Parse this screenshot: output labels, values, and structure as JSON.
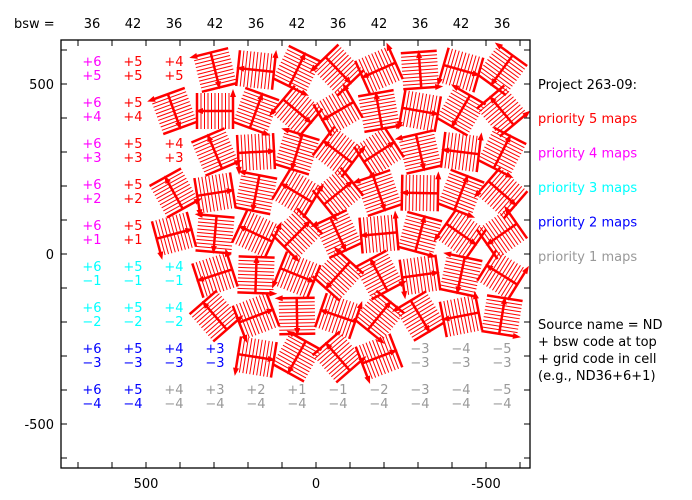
{
  "chart_data": {
    "type": "scatter",
    "title": "",
    "xlabel": "",
    "ylabel": "",
    "xlim": [
      750,
      -620
    ],
    "ylim": [
      -630,
      630
    ],
    "x_ticks": [
      "500",
      "0",
      "-500"
    ],
    "x_tick_values": [
      500,
      0,
      -500
    ],
    "y_ticks": [
      "500",
      "0",
      "-500"
    ],
    "y_tick_values": [
      500,
      0,
      -500
    ],
    "bsw_label": "bsw =",
    "bsw_codes": [
      "36",
      "42",
      "36",
      "42",
      "36",
      "42",
      "36",
      "42",
      "36",
      "42",
      "36"
    ],
    "column_codes": [
      "+6",
      "+5",
      "+4",
      "+3",
      "+2",
      "+1",
      "−1",
      "−2",
      "−3",
      "−4",
      "−5"
    ],
    "row_codes": [
      "+5",
      "+4",
      "+3",
      "+2",
      "+1",
      "−1",
      "−2",
      "−3",
      "−4"
    ],
    "colors": {
      "p5": "#ff0000",
      "p4": "#ff00ff",
      "p3": "#00ffff",
      "p2": "#0000ff",
      "p1": "#999999",
      "axis": "#000000"
    },
    "map_rows": [
      {
        "row": 0,
        "cols": [
          3,
          4,
          5,
          6,
          7,
          8,
          9,
          10
        ]
      },
      {
        "row": 1,
        "cols": [
          2,
          3,
          4,
          5,
          6,
          7,
          8,
          9,
          10
        ]
      },
      {
        "row": 2,
        "cols": [
          3,
          4,
          5,
          6,
          7,
          8,
          9,
          10
        ]
      },
      {
        "row": 3,
        "cols": [
          2,
          3,
          4,
          5,
          6,
          7,
          8,
          9,
          10
        ]
      },
      {
        "row": 4,
        "cols": [
          2,
          3,
          4,
          5,
          6,
          7,
          8,
          9,
          10
        ]
      },
      {
        "row": 5,
        "cols": [
          3,
          4,
          5,
          6,
          7,
          8,
          9,
          10
        ]
      },
      {
        "row": 6,
        "cols": [
          3,
          4,
          5,
          6,
          7,
          8,
          9,
          10
        ]
      },
      {
        "row": 7,
        "cols": [
          4,
          5,
          6,
          7
        ]
      }
    ],
    "label_cells": [
      {
        "row": 0,
        "col": 0,
        "p": "p4"
      },
      {
        "row": 0,
        "col": 1,
        "p": "p5"
      },
      {
        "row": 0,
        "col": 2,
        "p": "p5"
      },
      {
        "row": 1,
        "col": 0,
        "p": "p4"
      },
      {
        "row": 1,
        "col": 1,
        "p": "p5"
      },
      {
        "row": 2,
        "col": 0,
        "p": "p4"
      },
      {
        "row": 2,
        "col": 1,
        "p": "p5"
      },
      {
        "row": 2,
        "col": 2,
        "p": "p5"
      },
      {
        "row": 3,
        "col": 0,
        "p": "p4"
      },
      {
        "row": 3,
        "col": 1,
        "p": "p5"
      },
      {
        "row": 4,
        "col": 0,
        "p": "p4"
      },
      {
        "row": 4,
        "col": 1,
        "p": "p5"
      },
      {
        "row": 5,
        "col": 0,
        "p": "p3"
      },
      {
        "row": 5,
        "col": 1,
        "p": "p3"
      },
      {
        "row": 5,
        "col": 2,
        "p": "p3"
      },
      {
        "row": 6,
        "col": 0,
        "p": "p3"
      },
      {
        "row": 6,
        "col": 1,
        "p": "p3"
      },
      {
        "row": 6,
        "col": 2,
        "p": "p3"
      },
      {
        "row": 7,
        "col": 0,
        "p": "p2"
      },
      {
        "row": 7,
        "col": 1,
        "p": "p2"
      },
      {
        "row": 7,
        "col": 2,
        "p": "p2"
      },
      {
        "row": 7,
        "col": 3,
        "p": "p2"
      },
      {
        "row": 7,
        "col": 8,
        "p": "p1"
      },
      {
        "row": 7,
        "col": 9,
        "p": "p1"
      },
      {
        "row": 7,
        "col": 10,
        "p": "p1"
      },
      {
        "row": 8,
        "col": 0,
        "p": "p2"
      },
      {
        "row": 8,
        "col": 1,
        "p": "p2"
      },
      {
        "row": 8,
        "col": 2,
        "p": "p1"
      },
      {
        "row": 8,
        "col": 3,
        "p": "p1"
      },
      {
        "row": 8,
        "col": 4,
        "p": "p1"
      },
      {
        "row": 8,
        "col": 5,
        "p": "p1"
      },
      {
        "row": 8,
        "col": 6,
        "p": "p1"
      },
      {
        "row": 8,
        "col": 7,
        "p": "p1"
      },
      {
        "row": 8,
        "col": 8,
        "p": "p1"
      },
      {
        "row": 8,
        "col": 9,
        "p": "p1"
      },
      {
        "row": 8,
        "col": 10,
        "p": "p1"
      }
    ],
    "legend": {
      "project": "Project 263-09:",
      "items": [
        {
          "label": "priority 5 maps",
          "p": "p5"
        },
        {
          "label": "priority 4 maps",
          "p": "p4"
        },
        {
          "label": "priority 3 maps",
          "p": "p3"
        },
        {
          "label": "priority 2 maps",
          "p": "p2"
        },
        {
          "label": "priority 1 maps",
          "p": "p1"
        }
      ],
      "note": [
        "Source name = ND",
        " + bsw code at top",
        " + grid code in cell",
        "(e.g., ND36+6+1)"
      ]
    }
  }
}
